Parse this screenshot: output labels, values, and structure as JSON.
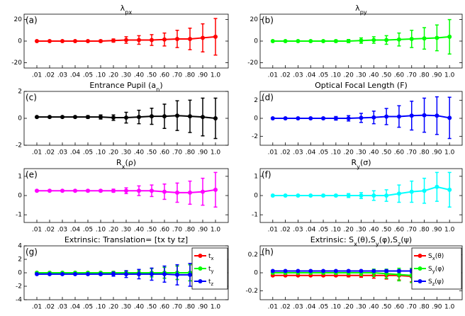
{
  "chart_data": [
    {
      "type": "errorbar_line",
      "panel": "(a)",
      "title": [
        {
          "text": "λ"
        },
        {
          "text": "px",
          "sub": true
        }
      ],
      "categories": [
        ".01",
        ".02",
        ".03",
        ".04",
        ".05",
        ".10",
        ".20",
        ".30",
        ".40",
        ".50",
        ".60",
        ".70",
        ".80",
        ".90",
        "1.0"
      ],
      "ylim": [
        -25,
        25
      ],
      "yticks": [
        -20,
        0,
        20
      ],
      "series": [
        {
          "color": "#ff0000",
          "values": [
            0,
            0,
            0,
            0,
            0,
            0,
            0.5,
            1,
            1,
            1,
            1.5,
            2,
            2,
            3,
            4
          ],
          "errors": [
            0.5,
            0.5,
            0.5,
            0.5,
            0.5,
            1,
            1.5,
            3,
            4,
            5,
            6,
            8,
            10,
            13,
            17
          ]
        }
      ]
    },
    {
      "type": "errorbar_line",
      "panel": "(b)",
      "title": [
        {
          "text": "λ"
        },
        {
          "text": "py",
          "sub": true
        }
      ],
      "categories": [
        ".01",
        ".02",
        ".03",
        ".04",
        ".05",
        ".10",
        ".20",
        ".30",
        ".40",
        ".50",
        ".60",
        ".70",
        ".80",
        ".90",
        "1.0"
      ],
      "ylim": [
        -25,
        25
      ],
      "yticks": [
        -20,
        0,
        20
      ],
      "series": [
        {
          "color": "#00ff00",
          "values": [
            0,
            0,
            0,
            0,
            0,
            0,
            0,
            0.5,
            1,
            1,
            1.5,
            2,
            2.5,
            3,
            4
          ],
          "errors": [
            0.5,
            0.5,
            0.5,
            0.5,
            0.5,
            1,
            1.5,
            2.5,
            3,
            4,
            6,
            8,
            10,
            12,
            16
          ]
        }
      ]
    },
    {
      "type": "errorbar_line",
      "panel": "(c)",
      "title": [
        {
          "text": "Entrance Pupil (a"
        },
        {
          "text": "n",
          "sub": true
        },
        {
          "text": ")"
        }
      ],
      "categories": [
        ".01",
        ".02",
        ".03",
        ".04",
        ".05",
        ".10",
        ".20",
        ".30",
        ".40",
        ".50",
        ".60",
        ".70",
        ".80",
        ".90",
        "1.0"
      ],
      "ylim": [
        -2,
        2
      ],
      "yticks": [
        -2,
        0,
        2
      ],
      "series": [
        {
          "color": "#000000",
          "values": [
            0.1,
            0.1,
            0.1,
            0.1,
            0.1,
            0.1,
            0.05,
            0.05,
            0.1,
            0.15,
            0.15,
            0.2,
            0.15,
            0.1,
            0
          ],
          "errors": [
            0.05,
            0.05,
            0.05,
            0.05,
            0.1,
            0.15,
            0.2,
            0.4,
            0.5,
            0.6,
            0.9,
            1.1,
            1.2,
            1.4,
            1.5
          ]
        }
      ]
    },
    {
      "type": "errorbar_line",
      "panel": "(d)",
      "title": [
        {
          "text": "Optical Focal Length (F)"
        }
      ],
      "categories": [
        ".01",
        ".02",
        ".03",
        ".04",
        ".05",
        ".10",
        ".20",
        ".30",
        ".40",
        ".50",
        ".60",
        ".70",
        ".80",
        ".90",
        "1.0"
      ],
      "ylim": [
        -3,
        3
      ],
      "yticks": [
        -2,
        0,
        2
      ],
      "series": [
        {
          "color": "#0000ff",
          "values": [
            0,
            0,
            0,
            0,
            0,
            0,
            0,
            0.05,
            0.1,
            0.2,
            0.2,
            0.3,
            0.35,
            0.3,
            0.05
          ],
          "errors": [
            0.05,
            0.05,
            0.05,
            0.05,
            0.1,
            0.2,
            0.3,
            0.5,
            0.7,
            0.9,
            1.2,
            1.6,
            1.9,
            2.1,
            2.3
          ]
        }
      ]
    },
    {
      "type": "errorbar_line",
      "panel": "(e)",
      "title": [
        {
          "text": "R"
        },
        {
          "text": "x",
          "sub": true
        },
        {
          "text": "(ρ)"
        }
      ],
      "categories": [
        ".01",
        ".02",
        ".03",
        ".04",
        ".05",
        ".10",
        ".20",
        ".30",
        ".40",
        ".50",
        ".60",
        ".70",
        ".80",
        ".90",
        "1.0"
      ],
      "ylim": [
        -1.4,
        1.4
      ],
      "yticks": [
        -1,
        0,
        1
      ],
      "series": [
        {
          "color": "#ff00ff",
          "values": [
            0.25,
            0.25,
            0.25,
            0.25,
            0.25,
            0.25,
            0.25,
            0.25,
            0.25,
            0.25,
            0.2,
            0.15,
            0.15,
            0.2,
            0.3
          ],
          "errors": [
            0.02,
            0.02,
            0.02,
            0.02,
            0.05,
            0.05,
            0.08,
            0.15,
            0.25,
            0.3,
            0.4,
            0.5,
            0.6,
            0.7,
            0.9
          ]
        }
      ]
    },
    {
      "type": "errorbar_line",
      "panel": "(f)",
      "title": [
        {
          "text": "R"
        },
        {
          "text": "y",
          "sub": true
        },
        {
          "text": "(σ)"
        }
      ],
      "categories": [
        ".01",
        ".02",
        ".03",
        ".04",
        ".05",
        ".10",
        ".20",
        ".30",
        ".40",
        ".50",
        ".60",
        ".70",
        ".80",
        ".90",
        "1.0"
      ],
      "ylim": [
        -1.4,
        1.4
      ],
      "yticks": [
        -1,
        0,
        1
      ],
      "series": [
        {
          "color": "#00ffff",
          "values": [
            0,
            0,
            0,
            0,
            0,
            0,
            0,
            0,
            0,
            0,
            0.1,
            0.2,
            0.25,
            0.45,
            0.3
          ],
          "errors": [
            0.02,
            0.02,
            0.02,
            0.02,
            0.05,
            0.05,
            0.1,
            0.15,
            0.25,
            0.3,
            0.45,
            0.55,
            0.65,
            0.75,
            0.9
          ]
        }
      ]
    },
    {
      "type": "errorbar_line",
      "panel": "(g)",
      "title": [
        {
          "text": "Extrinsic: Translation= [tx ty tz]"
        }
      ],
      "categories": [
        ".01",
        ".02",
        ".03",
        ".04",
        ".05",
        ".10",
        ".20",
        ".30",
        ".40",
        ".50",
        ".60",
        ".70",
        ".80",
        ".90",
        "1.0"
      ],
      "ylim": [
        -4,
        4
      ],
      "yticks": [
        -4,
        -2,
        0,
        2,
        4
      ],
      "series": [
        {
          "name": [
            {
              "text": "t"
            },
            {
              "text": "x",
              "sub": true
            }
          ],
          "color": "#ff0000",
          "values": [
            0,
            0,
            0,
            0,
            0,
            0,
            0,
            0,
            0,
            0,
            0,
            0,
            0,
            0,
            0
          ],
          "errors": [
            0.05,
            0.05,
            0.05,
            0.05,
            0.1,
            0.1,
            0.2,
            0.3,
            0.4,
            0.6,
            0.8,
            1,
            1.2,
            1.4,
            1.5
          ]
        },
        {
          "name": [
            {
              "text": "t"
            },
            {
              "text": "y",
              "sub": true
            }
          ],
          "color": "#00ff00",
          "values": [
            0,
            0,
            0,
            0,
            0,
            0,
            0,
            0,
            0,
            0,
            0,
            0,
            0,
            0,
            0
          ],
          "errors": [
            0.05,
            0.05,
            0.05,
            0.05,
            0.1,
            0.1,
            0.2,
            0.3,
            0.4,
            0.6,
            0.8,
            1,
            1.2,
            1.4,
            1.5
          ]
        },
        {
          "name": [
            {
              "text": "t"
            },
            {
              "text": "z",
              "sub": true
            }
          ],
          "color": "#0000ff",
          "values": [
            -0.2,
            -0.2,
            -0.2,
            -0.2,
            -0.2,
            -0.2,
            -0.2,
            -0.2,
            -0.2,
            -0.2,
            -0.2,
            -0.3,
            -0.3,
            -0.3,
            -0.3
          ],
          "errors": [
            0.05,
            0.05,
            0.05,
            0.05,
            0.1,
            0.15,
            0.3,
            0.5,
            0.7,
            0.9,
            1.2,
            1.5,
            1.7,
            1.8,
            1.9
          ]
        }
      ]
    },
    {
      "type": "errorbar_line",
      "panel": "(h)",
      "title": [
        {
          "text": "Extrinsic: S"
        },
        {
          "text": "x",
          "sub": true
        },
        {
          "text": "(θ),S"
        },
        {
          "text": "y",
          "sub": true
        },
        {
          "text": "(φ),S"
        },
        {
          "text": "z",
          "sub": true
        },
        {
          "text": "(ψ)"
        }
      ],
      "categories": [
        ".01",
        ".02",
        ".03",
        ".04",
        ".05",
        ".10",
        ".20",
        ".30",
        ".40",
        ".50",
        ".60",
        ".70",
        ".80",
        ".90",
        "1.0"
      ],
      "ylim": [
        -0.3,
        0.3
      ],
      "yticks": [
        -0.2,
        0,
        0.2
      ],
      "series": [
        {
          "name": [
            {
              "text": "S"
            },
            {
              "text": "x",
              "sub": true
            },
            {
              "text": "(θ)"
            }
          ],
          "color": "#ff0000",
          "values": [
            -0.03,
            -0.03,
            -0.03,
            -0.03,
            -0.03,
            -0.03,
            -0.03,
            -0.03,
            -0.03,
            -0.03,
            -0.03,
            -0.04,
            -0.04,
            -0.04,
            -0.04
          ],
          "errors": [
            0.005,
            0.005,
            0.005,
            0.005,
            0.01,
            0.01,
            0.015,
            0.02,
            0.03,
            0.04,
            0.05,
            0.06,
            0.07,
            0.08,
            0.09
          ]
        },
        {
          "name": [
            {
              "text": "S"
            },
            {
              "text": "y",
              "sub": true
            },
            {
              "text": "(φ)"
            }
          ],
          "color": "#00ff00",
          "values": [
            0,
            0,
            0,
            0,
            0,
            0,
            0,
            0,
            0,
            -0.01,
            -0.02,
            -0.03,
            -0.03,
            -0.03,
            -0.03
          ],
          "errors": [
            0.005,
            0.005,
            0.005,
            0.005,
            0.01,
            0.015,
            0.02,
            0.03,
            0.04,
            0.05,
            0.07,
            0.08,
            0.09,
            0.1,
            0.1
          ]
        },
        {
          "name": [
            {
              "text": "S"
            },
            {
              "text": "z",
              "sub": true
            },
            {
              "text": "(ψ)"
            }
          ],
          "color": "#0000ff",
          "values": [
            0.02,
            0.02,
            0.02,
            0.02,
            0.02,
            0.02,
            0.02,
            0.02,
            0.02,
            0.02,
            0.02,
            0.02,
            0.02,
            0.02,
            0.02
          ],
          "errors": [
            0.005,
            0.005,
            0.005,
            0.005,
            0.005,
            0.005,
            0.01,
            0.01,
            0.01,
            0.015,
            0.015,
            0.02,
            0.02,
            0.02,
            0.02
          ]
        }
      ]
    }
  ]
}
